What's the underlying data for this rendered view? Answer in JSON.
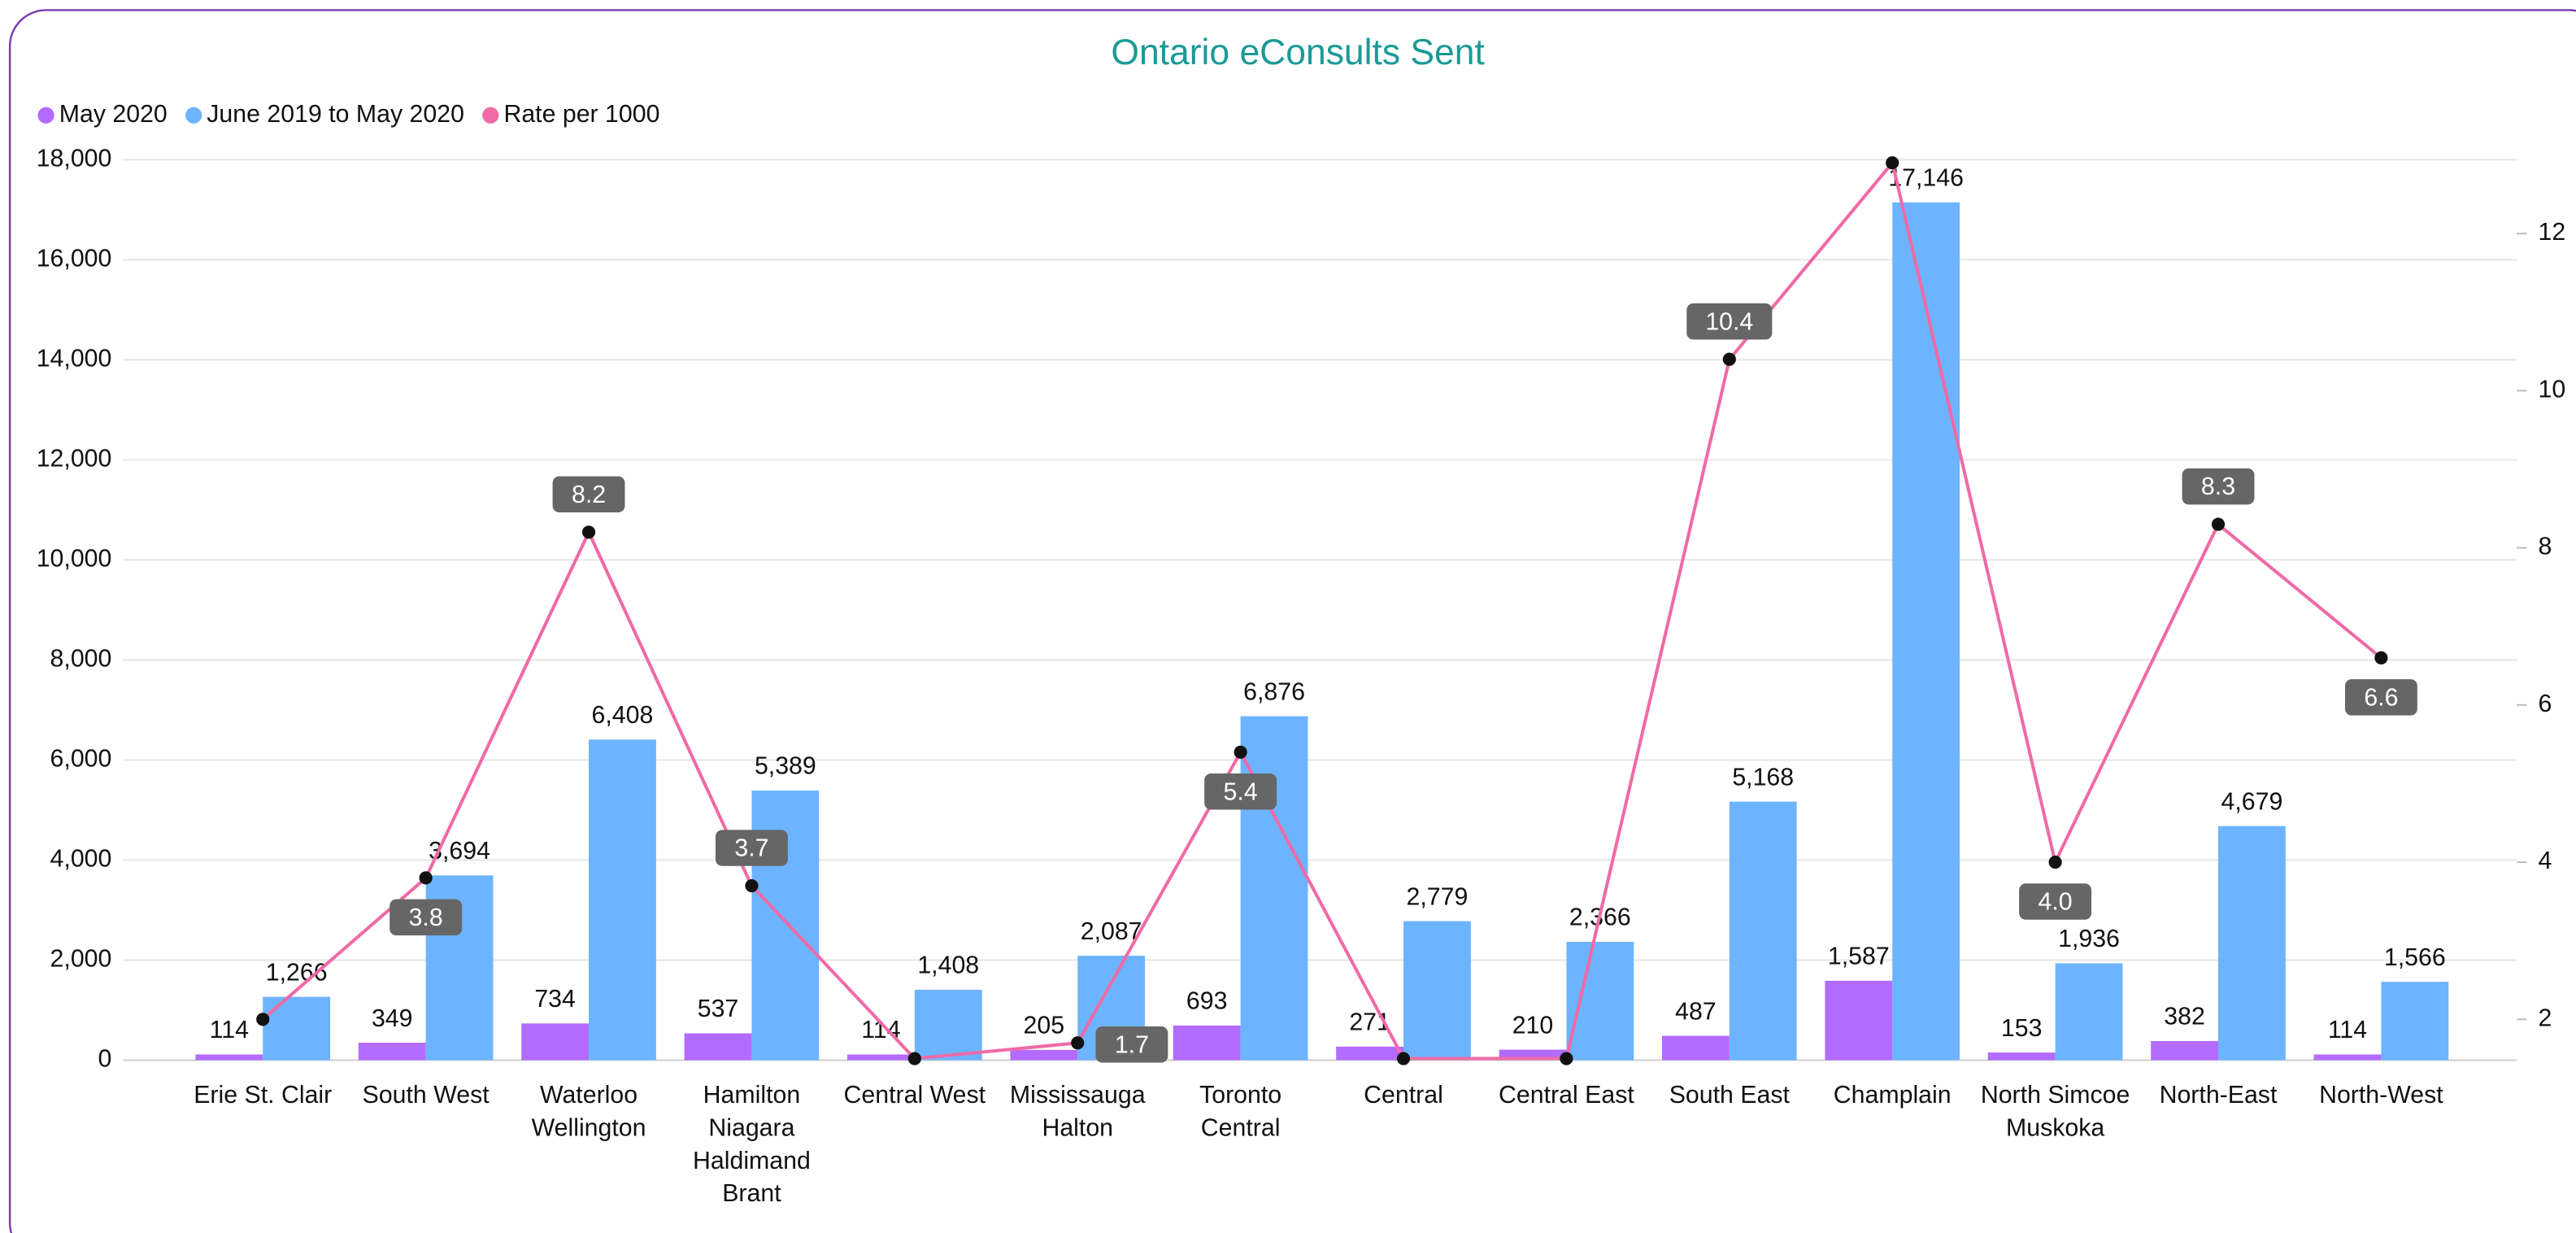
{
  "chart_data": {
    "type": "bar-line",
    "title": "Ontario eConsults Sent",
    "categories": [
      [
        "Erie St. Clair"
      ],
      [
        "South West"
      ],
      [
        "Waterloo",
        "Wellington"
      ],
      [
        "Hamilton",
        "Niagara",
        "Haldimand",
        "Brant"
      ],
      [
        "Central West"
      ],
      [
        "Mississauga",
        "Halton"
      ],
      [
        "Toronto",
        "Central"
      ],
      [
        "Central"
      ],
      [
        "Central East"
      ],
      [
        "South East"
      ],
      [
        "Champlain"
      ],
      [
        "North Simcoe",
        "Muskoka"
      ],
      [
        "North-East"
      ],
      [
        "North-West"
      ]
    ],
    "series": [
      {
        "name": "May 2020",
        "color": "#b36bff",
        "type": "bar",
        "values": [
          114,
          349,
          734,
          537,
          114,
          205,
          693,
          271,
          210,
          487,
          1587,
          153,
          382,
          114
        ],
        "value_labels": [
          "114",
          "349",
          "734",
          "537",
          "114",
          "205",
          "693",
          "271",
          "210",
          "487",
          "1,587",
          "153",
          "382",
          "114"
        ]
      },
      {
        "name": "June 2019 to May 2020",
        "color": "#6cb4ff",
        "type": "bar",
        "values": [
          1266,
          3694,
          6408,
          5389,
          1408,
          2087,
          6876,
          2779,
          2366,
          5168,
          17146,
          1936,
          4679,
          1566
        ],
        "value_labels": [
          "1,266",
          "3,694",
          "6,408",
          "5,389",
          "1,408",
          "2,087",
          "6,876",
          "2,779",
          "2,366",
          "5,168",
          "17,146",
          "1,936",
          "4,679",
          "1,566"
        ]
      },
      {
        "name": "Rate per 1000",
        "color": "#f06aa6",
        "type": "line",
        "axis": "y2",
        "values": [
          2.0,
          3.8,
          8.2,
          3.7,
          1.5,
          1.7,
          5.4,
          1.5,
          1.5,
          10.4,
          12.9,
          4.0,
          8.3,
          6.6
        ],
        "value_labels": [
          null,
          "3.8",
          "8.2",
          "3.7",
          null,
          "1.7",
          "5.4",
          null,
          null,
          "10.4",
          null,
          "4.0",
          "8.3",
          "6.6"
        ]
      }
    ],
    "ylim": [
      0,
      18000
    ],
    "yticks": [
      0,
      {
        "value": 2000,
        "label": "2,000"
      },
      {
        "value": 4000,
        "label": "4,000"
      },
      {
        "value": 6000,
        "label": "6,000"
      },
      {
        "value": 8000,
        "label": "8,000"
      },
      {
        "value": 10000,
        "label": "10,000"
      },
      {
        "value": 12000,
        "label": "12,000"
      },
      {
        "value": 14000,
        "label": "14,000"
      },
      {
        "value": 16000,
        "label": "16,000"
      },
      {
        "value": 18000,
        "label": "18,000"
      }
    ],
    "y2lim": [
      1.48,
      12.94
    ],
    "y2ticks": [
      2,
      4,
      6,
      8,
      10,
      12
    ],
    "grid": true,
    "legend": "top-left"
  }
}
